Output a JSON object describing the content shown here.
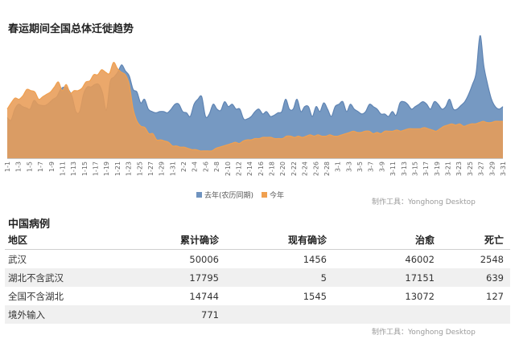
{
  "title": "春运期间全国总体迁徙趋势",
  "credit": "制作工具：Yonghong Desktop",
  "colors": {
    "last_year": "#6f93bf",
    "this_year": "#f0a050",
    "this_year_fill": "#e89c56"
  },
  "chart_data": {
    "type": "area",
    "title": "春运期间全国总体迁徙趋势",
    "x_labels": [
      "1-1",
      "1-3",
      "1-5",
      "1-7",
      "1-9",
      "1-11",
      "1-13",
      "1-15",
      "1-17",
      "1-19",
      "1-21",
      "1-23",
      "1-25",
      "1-27",
      "1-29",
      "1-31",
      "2-2",
      "2-4",
      "2-6",
      "2-8",
      "2-10",
      "2-12",
      "2-14",
      "2-16",
      "2-18",
      "2-20",
      "2-22",
      "2-24",
      "2-26",
      "2-28",
      "3-1",
      "3-3",
      "3-5",
      "3-7",
      "3-9",
      "3-11",
      "3-13",
      "3-15",
      "3-17",
      "3-19",
      "3-21",
      "3-23",
      "3-25",
      "3-27",
      "3-29",
      "3-31"
    ],
    "legend_position": "bottom",
    "grid": false,
    "ylim": [
      0,
      100
    ],
    "series": [
      {
        "name": "去年(农历同期)",
        "values": [
          33,
          31,
          40,
          44,
          42,
          41,
          40,
          47,
          44,
          43,
          43,
          45,
          48,
          50,
          56,
          58,
          56,
          50,
          38,
          38,
          52,
          58,
          58,
          60,
          60,
          53,
          39,
          62,
          66,
          70,
          76,
          71,
          67,
          56,
          54,
          45,
          48,
          40,
          38,
          37,
          38,
          38,
          37,
          40,
          44,
          44,
          38,
          37,
          34,
          44,
          48,
          50,
          34,
          36,
          44,
          40,
          39,
          46,
          42,
          44,
          40,
          40,
          32,
          32,
          34,
          38,
          40,
          36,
          38,
          34,
          35,
          37,
          38,
          48,
          40,
          40,
          48,
          38,
          42,
          42,
          34,
          42,
          38,
          45,
          40,
          34,
          42,
          44,
          46,
          38,
          44,
          40,
          38,
          36,
          38,
          44,
          42,
          40,
          36,
          36,
          34,
          38,
          35,
          45,
          46,
          44,
          40,
          42,
          44,
          46,
          44,
          40,
          46,
          44,
          40,
          42,
          48,
          40,
          40,
          43,
          46,
          52,
          60,
          70,
          100,
          75,
          60,
          48,
          42,
          40,
          42
        ]
      },
      {
        "name": "今年",
        "values": [
          40,
          45,
          49,
          48,
          51,
          56,
          55,
          54,
          48,
          50,
          52,
          54,
          58,
          62,
          55,
          60,
          53,
          55,
          55,
          57,
          62,
          63,
          68,
          68,
          72,
          70,
          69,
          78,
          73,
          70,
          68,
          60,
          40,
          30,
          26,
          25,
          20,
          20,
          15,
          15,
          14,
          13,
          10,
          10,
          9,
          9,
          8,
          7,
          7,
          6,
          6,
          6,
          6,
          8,
          9,
          10,
          11,
          12,
          13,
          12,
          14,
          15,
          15,
          16,
          16,
          17,
          17,
          17,
          16,
          16,
          16,
          18,
          18,
          17,
          18,
          17,
          18,
          19,
          18,
          19,
          18,
          18,
          19,
          18,
          18,
          19,
          20,
          21,
          22,
          21,
          21,
          22,
          22,
          20,
          21,
          20,
          22,
          22,
          22,
          23,
          22,
          23,
          24,
          24,
          24,
          24,
          25,
          24,
          23,
          22,
          24,
          26,
          27,
          28,
          27,
          28,
          26,
          27,
          28,
          28,
          29,
          30,
          29,
          29,
          30,
          30,
          30
        ]
      }
    ]
  },
  "table": {
    "title": "中国病例",
    "headers": [
      "地区",
      "累计确诊",
      "现有确诊",
      "治愈",
      "死亡"
    ],
    "rows": [
      [
        "武汉",
        "50006",
        "1456",
        "46002",
        "2548"
      ],
      [
        "湖北不含武汉",
        "17795",
        "5",
        "17151",
        "639"
      ],
      [
        "全国不含湖北",
        "14744",
        "1545",
        "13072",
        "127"
      ],
      [
        "境外输入",
        "771",
        "",
        "",
        ""
      ]
    ]
  }
}
